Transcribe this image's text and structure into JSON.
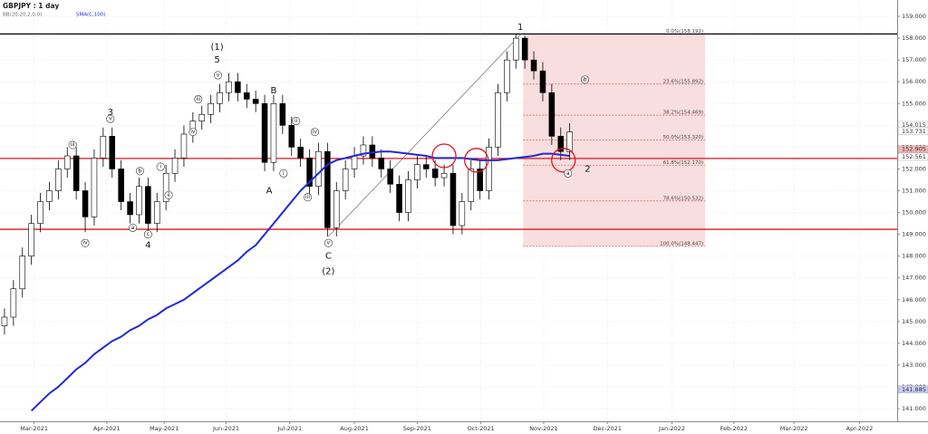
{
  "chart_data": {
    "type": "candlestick",
    "title": "GBPJPY   : 1 day",
    "indicators": [
      "BB(20,20,2,0,0)",
      "SMA(C,100)"
    ],
    "categories": [
      null,
      null,
      null,
      null,
      null,
      null,
      null,
      null,
      null,
      null,
      null,
      null,
      null,
      null,
      null,
      null,
      null,
      null,
      null,
      null,
      null,
      null,
      null,
      null,
      null,
      null,
      null,
      null,
      null,
      null,
      null,
      null,
      null,
      null,
      null,
      null,
      null,
      null,
      null,
      null,
      null,
      null,
      null,
      null,
      null,
      null,
      null,
      null,
      null,
      null,
      null,
      null,
      null,
      null,
      null,
      null,
      null,
      null,
      null,
      null,
      null,
      null,
      null,
      null
    ],
    "open": [
      144.8,
      145.2,
      146.5,
      148,
      149.5,
      150.5,
      151,
      152,
      152.6,
      151,
      149.8,
      152.5,
      153.5,
      152,
      150.5,
      149.9,
      151.2,
      149.5,
      150.5,
      151.8,
      152.5,
      153.6,
      154.2,
      154.5,
      155,
      155.5,
      156,
      155.5,
      155.2,
      155,
      152.3,
      155,
      154,
      153,
      152.5,
      151.2,
      152.8,
      149.3,
      151,
      152,
      152.6,
      153.1,
      152.5,
      152,
      151.3,
      150,
      151.5,
      152.2,
      152,
      151.6,
      151.8,
      149.4,
      150.5,
      152,
      151,
      153,
      155.5,
      157,
      158,
      157,
      156.5,
      155.5,
      153.5,
      152.8
    ],
    "high": [
      145.6,
      146.9,
      148.4,
      149.9,
      150.9,
      151.4,
      152.4,
      153,
      153,
      151.4,
      152.9,
      153.9,
      153.9,
      152.4,
      150.9,
      151.6,
      151.6,
      150.9,
      152.2,
      152.9,
      154,
      154.6,
      154.9,
      155.4,
      155.9,
      156.4,
      156.4,
      155.9,
      155.6,
      155.4,
      155.4,
      155.4,
      154.4,
      153.4,
      152.9,
      153.2,
      153.2,
      151.4,
      152.4,
      153,
      153.5,
      153.5,
      152.9,
      152.4,
      151.7,
      151.9,
      152.6,
      152.6,
      152.4,
      152.2,
      152.2,
      150.9,
      152.4,
      152.4,
      153.4,
      155.9,
      157.4,
      158.2,
      158.1,
      157.4,
      156.9,
      155.9,
      153.9,
      154.1
    ],
    "low": [
      144.4,
      144.8,
      146.1,
      147.6,
      149.1,
      150.1,
      150.6,
      151.6,
      150.6,
      149.1,
      149.4,
      152.1,
      151.6,
      150.1,
      149.5,
      149.5,
      149.1,
      149.1,
      150.1,
      151.4,
      152.1,
      153.2,
      153.8,
      154.1,
      154.6,
      155.1,
      155.1,
      154.8,
      154.6,
      151.9,
      151.9,
      153.6,
      152.6,
      152.1,
      150.8,
      150.8,
      148.9,
      148.9,
      150.6,
      151.6,
      152.2,
      152.1,
      151.6,
      150.9,
      149.6,
      149.6,
      151.1,
      151.6,
      151.2,
      151.2,
      149,
      149,
      150.1,
      150.6,
      150.6,
      152.6,
      155.1,
      156.6,
      156.6,
      156.1,
      155.1,
      153.1,
      152.4,
      152.4
    ],
    "close": [
      145.2,
      146.5,
      148,
      149.5,
      150.5,
      151,
      152,
      152.6,
      151,
      149.8,
      152.5,
      153.5,
      152,
      150.5,
      149.9,
      151.2,
      149.5,
      150.5,
      151.8,
      152.5,
      153.6,
      154.2,
      154.5,
      155,
      155.5,
      156,
      155.5,
      155.2,
      155,
      152.3,
      155,
      154,
      153,
      152.5,
      151.2,
      152.8,
      149.3,
      151,
      152,
      152.6,
      153.1,
      152.5,
      152,
      151.3,
      150,
      151.5,
      152.2,
      152,
      151.6,
      151.8,
      149.4,
      150.5,
      152,
      151,
      153,
      155.5,
      157,
      158,
      157,
      156.5,
      155.5,
      153.5,
      152.8,
      153.7
    ],
    "series": [
      {
        "name": "SMA(C,100)",
        "color": "#1f2ad6",
        "values": [
          null,
          null,
          null,
          140.9,
          141.3,
          141.7,
          142,
          142.4,
          142.8,
          143.1,
          143.5,
          143.8,
          144.1,
          144.3,
          144.6,
          144.8,
          145.1,
          145.3,
          145.6,
          145.8,
          146,
          146.3,
          146.6,
          146.9,
          147.2,
          147.5,
          147.8,
          148.2,
          148.5,
          149,
          149.5,
          150,
          150.5,
          151,
          151.4,
          151.8,
          152.2,
          152.4,
          152.5,
          152.6,
          152.7,
          152.75,
          152.8,
          152.8,
          152.75,
          152.7,
          152.65,
          152.6,
          152.5,
          152.5,
          152.5,
          152.5,
          152.45,
          152.4,
          152.4,
          152.4,
          152.45,
          152.5,
          152.55,
          152.6,
          152.7,
          152.7,
          152.65,
          152.6
        ]
      }
    ],
    "xlim": [
      -0.5,
      99.5
    ],
    "xticks": [
      {
        "value": 3.3,
        "label": "Mar-2021"
      },
      {
        "value": 11.4,
        "label": "Apr-2021"
      },
      {
        "value": 17.8,
        "label": "May-2021"
      },
      {
        "value": 24.7,
        "label": "Jun-2021"
      },
      {
        "value": 31.8,
        "label": "Jul-2021"
      },
      {
        "value": 39,
        "label": "Aug-2021"
      },
      {
        "value": 46,
        "label": "Sep-2021"
      },
      {
        "value": 53.1,
        "label": "Oct-2021"
      },
      {
        "value": 60.1,
        "label": "Nov-2021"
      },
      {
        "value": 67.2,
        "label": "Dec-2021"
      },
      {
        "value": 74.4,
        "label": "Jan-2022"
      },
      {
        "value": 81.3,
        "label": "Feb-2022"
      },
      {
        "value": 88,
        "label": "Mar-2022"
      },
      {
        "value": 95.3,
        "label": "Apr-2022"
      }
    ],
    "ylim": [
      140.42,
      159.71
    ],
    "yticks": [
      {
        "value": 141,
        "label": "141.000"
      },
      {
        "value": 142,
        "label": "142.000"
      },
      {
        "value": 143,
        "label": "143.000"
      },
      {
        "value": 144,
        "label": "144.000"
      },
      {
        "value": 145,
        "label": "145.000"
      },
      {
        "value": 146,
        "label": "146.000"
      },
      {
        "value": 147,
        "label": "147.000"
      },
      {
        "value": 148,
        "label": "148.000"
      },
      {
        "value": 149,
        "label": "149.000"
      },
      {
        "value": 150,
        "label": "150.000"
      },
      {
        "value": 151,
        "label": "151.000"
      },
      {
        "value": 152,
        "label": "152.000"
      },
      {
        "value": 153,
        "label": "153.000"
      },
      {
        "value": 154,
        "label": "154.000"
      },
      {
        "value": 155,
        "label": "155.000"
      },
      {
        "value": 156,
        "label": "156.000"
      },
      {
        "value": 157,
        "label": "157.000"
      },
      {
        "value": 158,
        "label": "158.000"
      },
      {
        "value": 159,
        "label": "159.000"
      }
    ],
    "grid": true,
    "hlines": [
      {
        "value": 158.192,
        "color": "#000000"
      },
      {
        "value": 152.48,
        "color": "#e0141e"
      },
      {
        "value": 149.23,
        "color": "#e0141e"
      }
    ],
    "price_tags": [
      {
        "value": 154.015,
        "label": "154.015",
        "color": "#ffffff"
      },
      {
        "value": 153.731,
        "label": "153.731",
        "color": "#ffffff"
      },
      {
        "value": 152.905,
        "label": "152.905",
        "color": "#f3b6b6"
      },
      {
        "value": 152.561,
        "label": "152.561",
        "color": "#ffffff"
      },
      {
        "value": 141.885,
        "label": "141.885",
        "color": "#c9ccf5"
      }
    ],
    "fib": {
      "x_from": 57.8,
      "x_to": 78.1,
      "color": "#f8dede",
      "levels": [
        {
          "value": 158.192,
          "label": "0.0%(158.192)"
        },
        {
          "value": 155.892,
          "label": "23.6%(155.892)"
        },
        {
          "value": 154.469,
          "label": "38.2%(154.469)"
        },
        {
          "value": 153.32,
          "label": "50.0%(153.320)"
        },
        {
          "value": 152.17,
          "label": "61.8%(152.170)"
        },
        {
          "value": 150.532,
          "label": "78.6%(150.532)"
        },
        {
          "value": 148.447,
          "label": "100.0%(148.447)"
        }
      ]
    },
    "trendline": [
      [
        36.1,
        148.9
      ],
      [
        57.6,
        158.2
      ]
    ],
    "circles": [
      [
        49,
        152.6
      ],
      [
        52.6,
        152.4
      ],
      [
        62.3,
        152.4
      ]
    ],
    "annotations": [
      {
        "text": "(1)",
        "x": 23.7,
        "y": 157.6
      },
      {
        "text": "5",
        "x": 23.7,
        "y": 157.0
      },
      {
        "text": "3",
        "x": 11.8,
        "y": 154.6
      },
      {
        "text": "4",
        "x": 16.0,
        "y": 148.5
      },
      {
        "text": "B",
        "x": 30,
        "y": 155.6
      },
      {
        "text": "A",
        "x": 29.5,
        "y": 151.0
      },
      {
        "text": "C",
        "x": 36.1,
        "y": 148.0
      },
      {
        "text": "(2)",
        "x": 36.1,
        "y": 147.3
      },
      {
        "text": "1",
        "x": 57.5,
        "y": 158.5
      },
      {
        "text": "2",
        "x": 65,
        "y": 152.0
      },
      {
        "text": "iii",
        "x": 7.6,
        "y": 153.1,
        "circled": true
      },
      {
        "text": "iv",
        "x": 9,
        "y": 148.6,
        "circled": true
      },
      {
        "text": "v",
        "x": 11.8,
        "y": 154.3,
        "circled": true
      },
      {
        "text": "a",
        "x": 14.3,
        "y": 149.3,
        "circled": true
      },
      {
        "text": "b",
        "x": 15.1,
        "y": 151.9,
        "circled": true
      },
      {
        "text": "c",
        "x": 16.0,
        "y": 149.0,
        "circled": true
      },
      {
        "text": "i",
        "x": 17.4,
        "y": 152.1,
        "circled": true
      },
      {
        "text": "ii",
        "x": 18.3,
        "y": 150.8,
        "circled": true
      },
      {
        "text": "iii",
        "x": 21.6,
        "y": 155.2,
        "circled": true
      },
      {
        "text": "iv",
        "x": 21,
        "y": 153.7,
        "circled": true
      },
      {
        "text": "v",
        "x": 23.8,
        "y": 156.3,
        "circled": true
      },
      {
        "text": "i",
        "x": 31.1,
        "y": 151.8,
        "circled": true
      },
      {
        "text": "ii",
        "x": 32.5,
        "y": 154.2,
        "circled": true
      },
      {
        "text": "iii",
        "x": 33.8,
        "y": 150.7,
        "circled": true
      },
      {
        "text": "iv",
        "x": 34.6,
        "y": 153.7,
        "circled": true
      },
      {
        "text": "v",
        "x": 36.1,
        "y": 148.6,
        "circled": true
      },
      {
        "text": "b",
        "x": 64.7,
        "y": 156.1,
        "circled": true
      },
      {
        "text": "a",
        "x": 62.8,
        "y": 151.8,
        "circled": true
      }
    ]
  }
}
